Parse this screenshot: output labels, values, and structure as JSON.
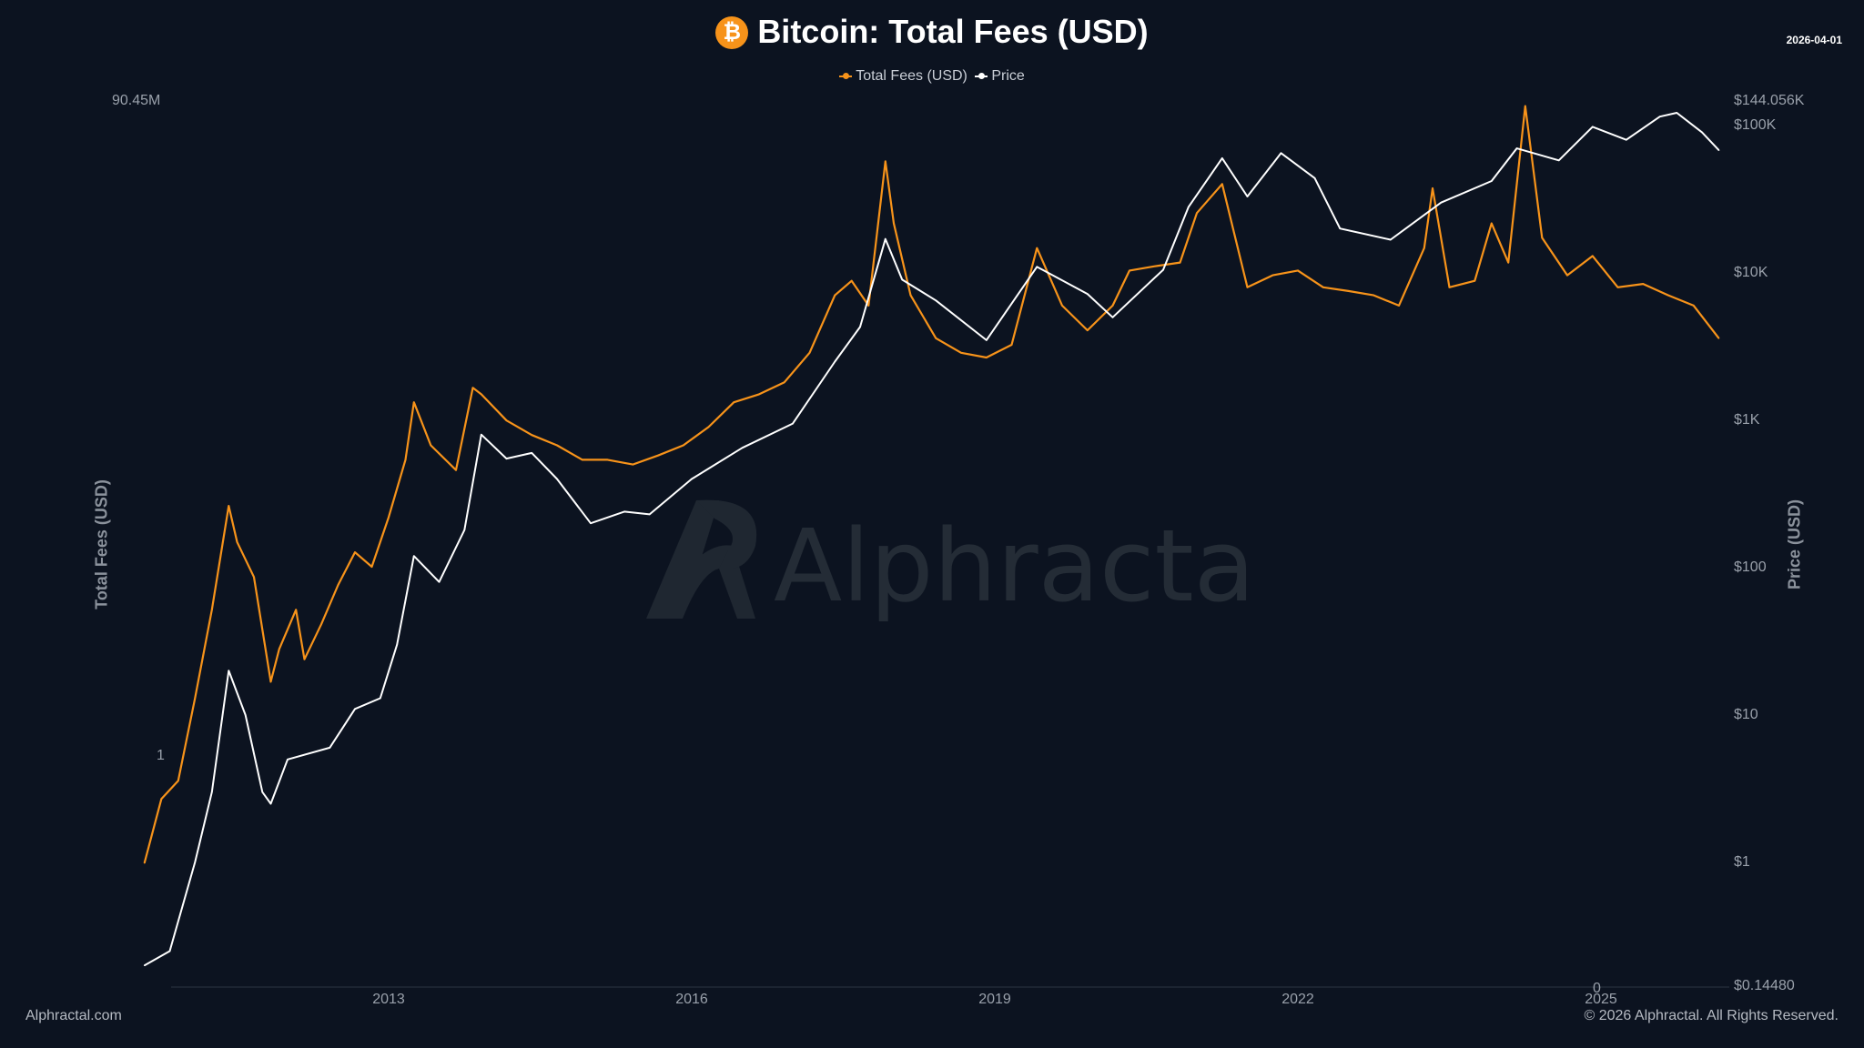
{
  "header": {
    "title": "Bitcoin: Total Fees (USD)",
    "icon": "bitcoin-icon",
    "date": "2026-04-01"
  },
  "legend": [
    {
      "label": "Total Fees (USD)",
      "color": "#f7931a"
    },
    {
      "label": "Price",
      "color": "#ffffff"
    }
  ],
  "watermark": "Alphractal",
  "footer": {
    "left": "Alphractal.com",
    "right": "© 2026 Alphractal. All Rights Reserved."
  },
  "chart_data": {
    "type": "line",
    "title": "Bitcoin: Total Fees (USD)",
    "x_ticks": [
      "2013",
      "2016",
      "2019",
      "2022",
      "2025"
    ],
    "x_range": [
      "2010-08",
      "2026-04"
    ],
    "left_axis": {
      "label": "Total Fees (USD)",
      "scale": "log",
      "ticks": [
        "90.45M",
        "1",
        "0"
      ],
      "max": 90450000
    },
    "right_axis": {
      "label": "Price (USD)",
      "scale": "log",
      "ticks": [
        "$144.056K",
        "$100K",
        "$10K",
        "$1K",
        "$100",
        "$10",
        "$1",
        "$0.14480"
      ],
      "min": 0.1448,
      "max": 144056
    },
    "grid": false,
    "legend_position": "top-center",
    "series": [
      {
        "name": "Total Fees (USD)",
        "axis": "left",
        "color": "#f7931a",
        "points": [
          [
            "2010-08",
            0.05
          ],
          [
            "2010-10",
            0.3
          ],
          [
            "2010-12",
            0.5
          ],
          [
            "2011-02",
            5
          ],
          [
            "2011-04",
            60
          ],
          [
            "2011-06",
            1100
          ],
          [
            "2011-07",
            400
          ],
          [
            "2011-09",
            150
          ],
          [
            "2011-11",
            8
          ],
          [
            "2011-12",
            20
          ],
          [
            "2012-02",
            60
          ],
          [
            "2012-03",
            15
          ],
          [
            "2012-05",
            40
          ],
          [
            "2012-07",
            120
          ],
          [
            "2012-09",
            300
          ],
          [
            "2012-11",
            200
          ],
          [
            "2013-01",
            800
          ],
          [
            "2013-03",
            4000
          ],
          [
            "2013-04",
            20000
          ],
          [
            "2013-06",
            6000
          ],
          [
            "2013-09",
            3000
          ],
          [
            "2013-11",
            30000
          ],
          [
            "2013-12",
            25000
          ],
          [
            "2014-03",
            12000
          ],
          [
            "2014-06",
            8000
          ],
          [
            "2014-09",
            6000
          ],
          [
            "2014-12",
            4000
          ],
          [
            "2015-03",
            4000
          ],
          [
            "2015-06",
            3500
          ],
          [
            "2015-09",
            4500
          ],
          [
            "2015-12",
            6000
          ],
          [
            "2016-03",
            10000
          ],
          [
            "2016-06",
            20000
          ],
          [
            "2016-09",
            25000
          ],
          [
            "2016-12",
            35000
          ],
          [
            "2017-03",
            80000
          ],
          [
            "2017-06",
            400000
          ],
          [
            "2017-08",
            600000
          ],
          [
            "2017-10",
            300000
          ],
          [
            "2017-12",
            17000000
          ],
          [
            "2018-01",
            3000000
          ],
          [
            "2018-03",
            400000
          ],
          [
            "2018-06",
            120000
          ],
          [
            "2018-09",
            80000
          ],
          [
            "2018-12",
            70000
          ],
          [
            "2019-03",
            100000
          ],
          [
            "2019-06",
            1500000
          ],
          [
            "2019-09",
            300000
          ],
          [
            "2019-12",
            150000
          ],
          [
            "2020-03",
            300000
          ],
          [
            "2020-05",
            800000
          ],
          [
            "2020-08",
            900000
          ],
          [
            "2020-11",
            1000000
          ],
          [
            "2021-01",
            4000000
          ],
          [
            "2021-04",
            9000000
          ],
          [
            "2021-07",
            500000
          ],
          [
            "2021-10",
            700000
          ],
          [
            "2022-01",
            800000
          ],
          [
            "2022-04",
            500000
          ],
          [
            "2022-07",
            450000
          ],
          [
            "2022-10",
            400000
          ],
          [
            "2023-01",
            300000
          ],
          [
            "2023-04",
            1500000
          ],
          [
            "2023-05",
            8000000
          ],
          [
            "2023-07",
            500000
          ],
          [
            "2023-10",
            600000
          ],
          [
            "2023-12",
            3000000
          ],
          [
            "2024-02",
            1000000
          ],
          [
            "2024-04",
            80000000
          ],
          [
            "2024-06",
            2000000
          ],
          [
            "2024-09",
            700000
          ],
          [
            "2024-12",
            1200000
          ],
          [
            "2025-03",
            500000
          ],
          [
            "2025-06",
            550000
          ],
          [
            "2025-09",
            400000
          ],
          [
            "2025-12",
            300000
          ],
          [
            "2026-03",
            120000
          ]
        ]
      },
      {
        "name": "Price",
        "axis": "right",
        "color": "#ffffff",
        "points": [
          [
            "2010-08",
            0.2
          ],
          [
            "2010-11",
            0.25
          ],
          [
            "2011-02",
            1
          ],
          [
            "2011-04",
            3
          ],
          [
            "2011-06",
            20
          ],
          [
            "2011-08",
            10
          ],
          [
            "2011-10",
            3
          ],
          [
            "2011-11",
            2.5
          ],
          [
            "2012-01",
            5
          ],
          [
            "2012-06",
            6
          ],
          [
            "2012-09",
            11
          ],
          [
            "2012-12",
            13
          ],
          [
            "2013-02",
            30
          ],
          [
            "2013-04",
            120
          ],
          [
            "2013-07",
            80
          ],
          [
            "2013-10",
            180
          ],
          [
            "2013-12",
            800
          ],
          [
            "2014-03",
            550
          ],
          [
            "2014-06",
            600
          ],
          [
            "2014-09",
            400
          ],
          [
            "2015-01",
            200
          ],
          [
            "2015-05",
            240
          ],
          [
            "2015-08",
            230
          ],
          [
            "2016-01",
            400
          ],
          [
            "2016-07",
            650
          ],
          [
            "2017-01",
            950
          ],
          [
            "2017-06",
            2500
          ],
          [
            "2017-09",
            4300
          ],
          [
            "2017-12",
            17000
          ],
          [
            "2018-02",
            9000
          ],
          [
            "2018-06",
            6500
          ],
          [
            "2018-12",
            3500
          ],
          [
            "2019-06",
            11000
          ],
          [
            "2019-12",
            7200
          ],
          [
            "2020-03",
            5000
          ],
          [
            "2020-09",
            10500
          ],
          [
            "2020-12",
            28000
          ],
          [
            "2021-04",
            60000
          ],
          [
            "2021-07",
            33000
          ],
          [
            "2021-11",
            65000
          ],
          [
            "2022-03",
            44000
          ],
          [
            "2022-06",
            20000
          ],
          [
            "2022-12",
            16800
          ],
          [
            "2023-06",
            30000
          ],
          [
            "2023-12",
            42000
          ],
          [
            "2024-03",
            70000
          ],
          [
            "2024-08",
            58000
          ],
          [
            "2024-12",
            98000
          ],
          [
            "2025-04",
            80000
          ],
          [
            "2025-08",
            115000
          ],
          [
            "2025-10",
            122000
          ],
          [
            "2026-01",
            90000
          ],
          [
            "2026-03",
            68000
          ]
        ]
      }
    ]
  }
}
